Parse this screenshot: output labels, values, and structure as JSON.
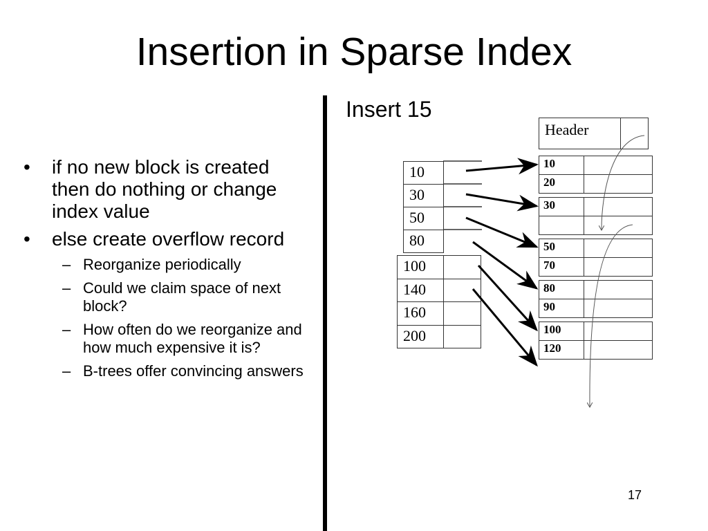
{
  "title": "Insertion in Sparse Index",
  "subtitle": "Insert 15",
  "bullets": [
    {
      "text": "if no new block is created then do nothing or change index value",
      "sub": []
    },
    {
      "text": "else create overflow record",
      "sub": [
        "Reorganize periodically",
        "Could we claim space of next block?",
        "How often do we reorganize and how much expensive it is?",
        "B-trees offer convincing answers"
      ]
    }
  ],
  "bullet_glyph": "•",
  "sub_bullet_glyph": "–",
  "diagram": {
    "index_block_1": [
      "10",
      "30",
      "50",
      "80"
    ],
    "index_block_2": [
      "100",
      "140",
      "160",
      "200"
    ],
    "header_label": "Header",
    "data_blocks": [
      [
        "10",
        "20"
      ],
      [
        "30",
        ""
      ],
      [
        "50",
        "70"
      ],
      [
        "80",
        "90"
      ],
      [
        "100",
        "120"
      ]
    ]
  },
  "page_number": "17"
}
